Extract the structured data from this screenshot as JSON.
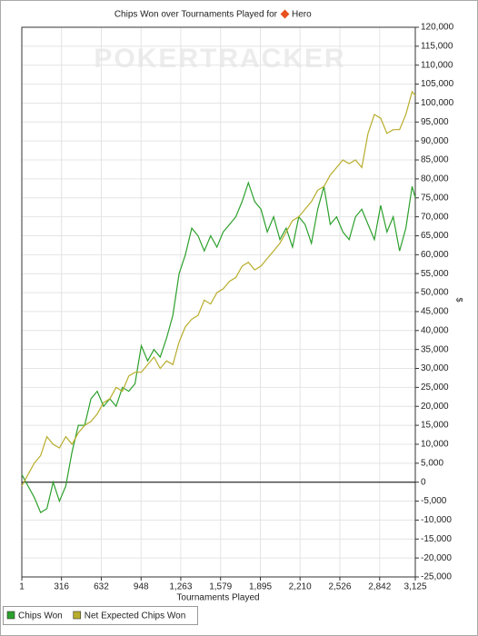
{
  "chart_data": {
    "type": "line",
    "title": "Chips Won over Tournaments Played for",
    "title_player": "Hero",
    "watermark": "POKERTRACKER",
    "xlabel": "Tournaments Played",
    "ylabel": "$",
    "grid": true,
    "x": [
      1,
      50,
      100,
      150,
      200,
      250,
      300,
      350,
      400,
      450,
      500,
      550,
      600,
      650,
      700,
      750,
      800,
      850,
      900,
      950,
      1000,
      1050,
      1100,
      1150,
      1200,
      1250,
      1300,
      1350,
      1400,
      1450,
      1500,
      1550,
      1600,
      1650,
      1700,
      1750,
      1800,
      1850,
      1900,
      1950,
      2000,
      2050,
      2100,
      2150,
      2200,
      2250,
      2300,
      2350,
      2400,
      2450,
      2500,
      2550,
      2600,
      2650,
      2700,
      2750,
      2800,
      2850,
      2900,
      2950,
      3000,
      3050,
      3100,
      3125
    ],
    "series": [
      {
        "name": "Chips Won",
        "color": "#2ca02c",
        "values": [
          2000,
          -1000,
          -4000,
          -8000,
          -7000,
          0,
          -5000,
          -1000,
          8000,
          15000,
          15000,
          22000,
          24000,
          20000,
          22000,
          20000,
          25000,
          24000,
          26000,
          36000,
          32000,
          35000,
          33000,
          38000,
          44000,
          55000,
          60000,
          67000,
          65000,
          61000,
          65000,
          62000,
          66000,
          68000,
          70000,
          74000,
          79000,
          74000,
          72000,
          66000,
          70000,
          64000,
          67000,
          62000,
          70000,
          68000,
          63000,
          72000,
          78000,
          68000,
          70000,
          66000,
          64000,
          70000,
          72000,
          68000,
          64000,
          73000,
          66000,
          70000,
          61000,
          67000,
          78000,
          75000
        ]
      },
      {
        "name": "Net Expected Chips Won",
        "color": "#b8ad2c",
        "values": [
          -1000,
          2000,
          5000,
          7000,
          12000,
          10000,
          9000,
          12000,
          10000,
          13000,
          15000,
          16000,
          18000,
          21000,
          22000,
          25000,
          24000,
          28000,
          29000,
          29000,
          31000,
          33000,
          30000,
          32000,
          31000,
          37000,
          41000,
          43000,
          44000,
          48000,
          47000,
          50000,
          51000,
          53000,
          54000,
          57000,
          58000,
          56000,
          57000,
          59000,
          61000,
          63000,
          66000,
          69000,
          70000,
          72000,
          74000,
          77000,
          78000,
          81000,
          83000,
          85000,
          84000,
          85000,
          83000,
          92000,
          97000,
          96000,
          92000,
          93000,
          93000,
          97000,
          103000,
          102000
        ]
      }
    ],
    "xlim": [
      1,
      3125
    ],
    "xticks": [
      1,
      316,
      632,
      948,
      {
        "value": 1263,
        "label": "1,263"
      },
      {
        "value": 1579,
        "label": "1,579"
      },
      {
        "value": 1895,
        "label": "1,895"
      },
      {
        "value": 2210,
        "label": "2,210"
      },
      {
        "value": 2526,
        "label": "2,526"
      },
      {
        "value": 2842,
        "label": "2,842"
      },
      {
        "value": 3125,
        "label": "3,125"
      }
    ],
    "ylim": [
      -25000,
      120000
    ],
    "yticks": [
      {
        "value": -25000,
        "label": "-25,000"
      },
      {
        "value": -20000,
        "label": "-20,000"
      },
      {
        "value": -15000,
        "label": "-15,000"
      },
      {
        "value": -10000,
        "label": "-10,000"
      },
      {
        "value": -5000,
        "label": "-5,000"
      },
      0,
      {
        "value": 5000,
        "label": "5,000"
      },
      {
        "value": 10000,
        "label": "10,000"
      },
      {
        "value": 15000,
        "label": "15,000"
      },
      {
        "value": 20000,
        "label": "20,000"
      },
      {
        "value": 25000,
        "label": "25,000"
      },
      {
        "value": 30000,
        "label": "30,000"
      },
      {
        "value": 35000,
        "label": "35,000"
      },
      {
        "value": 40000,
        "label": "40,000"
      },
      {
        "value": 45000,
        "label": "45,000"
      },
      {
        "value": 50000,
        "label": "50,000"
      },
      {
        "value": 55000,
        "label": "55,000"
      },
      {
        "value": 60000,
        "label": "60,000"
      },
      {
        "value": 65000,
        "label": "65,000"
      },
      {
        "value": 70000,
        "label": "70,000"
      },
      {
        "value": 75000,
        "label": "75,000"
      },
      {
        "value": 80000,
        "label": "80,000"
      },
      {
        "value": 85000,
        "label": "85,000"
      },
      {
        "value": 90000,
        "label": "90,000"
      },
      {
        "value": 95000,
        "label": "95,000"
      },
      {
        "value": 100000,
        "label": "100,000"
      },
      {
        "value": 105000,
        "label": "105,000"
      },
      {
        "value": 110000,
        "label": "110,000"
      },
      {
        "value": 115000,
        "label": "115,000"
      },
      {
        "value": 120000,
        "label": "120,000"
      }
    ]
  }
}
